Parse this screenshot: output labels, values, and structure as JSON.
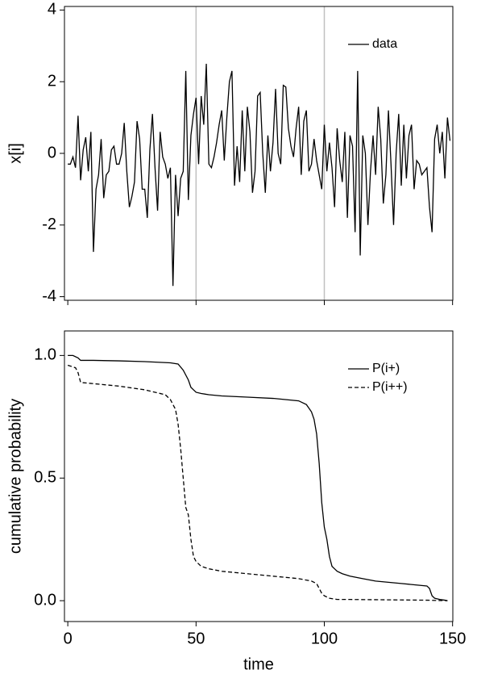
{
  "chart_data": [
    {
      "type": "line",
      "ylabel": "x[i]",
      "x": [
        0,
        1,
        2,
        3,
        4,
        5,
        6,
        7,
        8,
        9,
        10,
        11,
        12,
        13,
        14,
        15,
        16,
        17,
        18,
        19,
        20,
        21,
        22,
        23,
        24,
        25,
        26,
        27,
        28,
        29,
        30,
        31,
        32,
        33,
        34,
        35,
        36,
        37,
        38,
        39,
        40,
        41,
        42,
        43,
        44,
        45,
        46,
        47,
        48,
        49,
        50,
        51,
        52,
        53,
        54,
        55,
        56,
        57,
        58,
        59,
        60,
        61,
        62,
        63,
        64,
        65,
        66,
        67,
        68,
        69,
        70,
        71,
        72,
        73,
        74,
        75,
        76,
        77,
        78,
        79,
        80,
        81,
        82,
        83,
        84,
        85,
        86,
        87,
        88,
        89,
        90,
        91,
        92,
        93,
        94,
        95,
        96,
        97,
        98,
        99,
        100,
        101,
        102,
        103,
        104,
        105,
        106,
        107,
        108,
        109,
        110,
        111,
        112,
        113,
        114,
        115,
        116,
        117,
        118,
        119,
        120,
        121,
        122,
        123,
        124,
        125,
        126,
        127,
        128,
        129,
        130,
        131,
        132,
        133,
        134,
        135,
        136,
        137,
        138,
        139,
        140,
        141,
        142,
        143,
        144,
        145,
        146,
        147,
        148,
        149
      ],
      "series": [
        {
          "name": "data",
          "color": "#000000",
          "values": [
            -0.3,
            -0.3,
            -0.1,
            -0.4,
            1.05,
            -0.75,
            0.1,
            0.45,
            -0.5,
            0.6,
            -2.75,
            -1.0,
            -0.6,
            0.4,
            -1.25,
            -0.6,
            -0.5,
            0.1,
            0.2,
            -0.3,
            -0.3,
            0.0,
            0.85,
            -0.5,
            -1.5,
            -1.2,
            -0.8,
            0.9,
            0.4,
            -1.0,
            -1.0,
            -1.8,
            0.1,
            1.1,
            -0.4,
            -1.6,
            0.6,
            -0.1,
            -0.3,
            -0.7,
            -0.4,
            -3.7,
            -0.6,
            -1.75,
            -0.7,
            -0.5,
            2.3,
            -1.3,
            0.5,
            1.1,
            1.55,
            -0.3,
            1.6,
            0.8,
            2.5,
            -0.3,
            -0.4,
            -0.1,
            0.3,
            0.8,
            1.2,
            -0.2,
            1.0,
            2.0,
            2.3,
            -0.9,
            0.2,
            -0.8,
            1.2,
            -0.5,
            1.3,
            0.6,
            -1.1,
            -0.5,
            1.6,
            1.7,
            0.0,
            -1.1,
            0.5,
            -0.5,
            0.3,
            1.8,
            0.0,
            -0.3,
            1.9,
            1.85,
            0.7,
            0.2,
            -0.1,
            0.7,
            1.3,
            -0.6,
            0.9,
            1.2,
            -0.5,
            -0.3,
            0.4,
            -0.2,
            -0.6,
            -1.0,
            0.8,
            -0.5,
            0.3,
            -0.4,
            -1.5,
            0.7,
            -0.2,
            -0.8,
            0.6,
            -1.8,
            0.5,
            0.2,
            -2.2,
            2.3,
            -2.85,
            0.5,
            0.0,
            -2.0,
            -0.5,
            0.5,
            -0.6,
            1.3,
            0.4,
            -1.4,
            -0.6,
            1.2,
            -0.3,
            -2.0,
            0.0,
            1.1,
            -0.9,
            0.8,
            -0.7,
            0.5,
            0.8,
            -1.0,
            -0.2,
            -0.3,
            -0.6,
            -0.5,
            -0.4,
            -1.5,
            -2.2,
            0.4,
            0.8,
            0.0,
            0.6,
            -0.7,
            1.0,
            0.35
          ]
        }
      ],
      "vlines": [
        50,
        100
      ],
      "vline_color": "#c0c0c0",
      "xlim": [
        -1.3,
        150.1
      ],
      "ylim": [
        -4.1,
        4.1
      ],
      "yticks": [
        4,
        2,
        0,
        -2,
        -4
      ],
      "legend": "upper right"
    },
    {
      "type": "line",
      "xlabel": "time",
      "ylabel": "cumulative probability",
      "series": [
        {
          "name": "P(i+)",
          "color": "#000000",
          "dash": "none",
          "x": [
            0,
            2,
            4,
            5,
            10,
            20,
            30,
            40,
            43,
            45,
            47,
            48,
            49,
            50,
            52,
            55,
            60,
            70,
            80,
            90,
            93,
            95,
            96,
            97,
            98,
            99,
            100,
            101,
            102,
            103,
            104,
            105,
            107,
            110,
            115,
            120,
            130,
            140,
            141,
            142,
            143,
            145,
            147,
            148
          ],
          "values": [
            1.0,
            1.0,
            0.99,
            0.98,
            0.98,
            0.978,
            0.975,
            0.97,
            0.965,
            0.94,
            0.9,
            0.87,
            0.86,
            0.85,
            0.845,
            0.84,
            0.835,
            0.83,
            0.825,
            0.815,
            0.8,
            0.77,
            0.74,
            0.68,
            0.56,
            0.4,
            0.3,
            0.25,
            0.18,
            0.14,
            0.13,
            0.12,
            0.11,
            0.1,
            0.09,
            0.08,
            0.07,
            0.06,
            0.05,
            0.02,
            0.01,
            0.005,
            0.002,
            0.0
          ]
        },
        {
          "name": "P(i++)",
          "color": "#000000",
          "dash": "5,3",
          "x": [
            0,
            3,
            4,
            5,
            10,
            20,
            30,
            38,
            40,
            42,
            43,
            44,
            45,
            46,
            47,
            48,
            49,
            50,
            52,
            55,
            60,
            70,
            80,
            90,
            95,
            97,
            98,
            99,
            100,
            102,
            105,
            110,
            120,
            130,
            140,
            148
          ],
          "values": [
            0.96,
            0.95,
            0.93,
            0.89,
            0.885,
            0.875,
            0.86,
            0.84,
            0.82,
            0.78,
            0.72,
            0.62,
            0.5,
            0.38,
            0.35,
            0.25,
            0.18,
            0.16,
            0.14,
            0.13,
            0.12,
            0.11,
            0.1,
            0.09,
            0.08,
            0.07,
            0.05,
            0.03,
            0.02,
            0.01,
            0.005,
            0.005,
            0.004,
            0.003,
            0.002,
            0.0
          ]
        }
      ],
      "xlim": [
        -1.3,
        150.1
      ],
      "xticks": [
        0,
        50,
        100,
        150
      ],
      "ylim": [
        -0.085,
        1.1
      ],
      "yticks": [
        {
          "value": 1,
          "label": "1.0"
        },
        {
          "value": 0.5,
          "label": "0.5"
        },
        {
          "value": 0,
          "label": "0.0"
        }
      ],
      "legend": "upper right"
    }
  ]
}
